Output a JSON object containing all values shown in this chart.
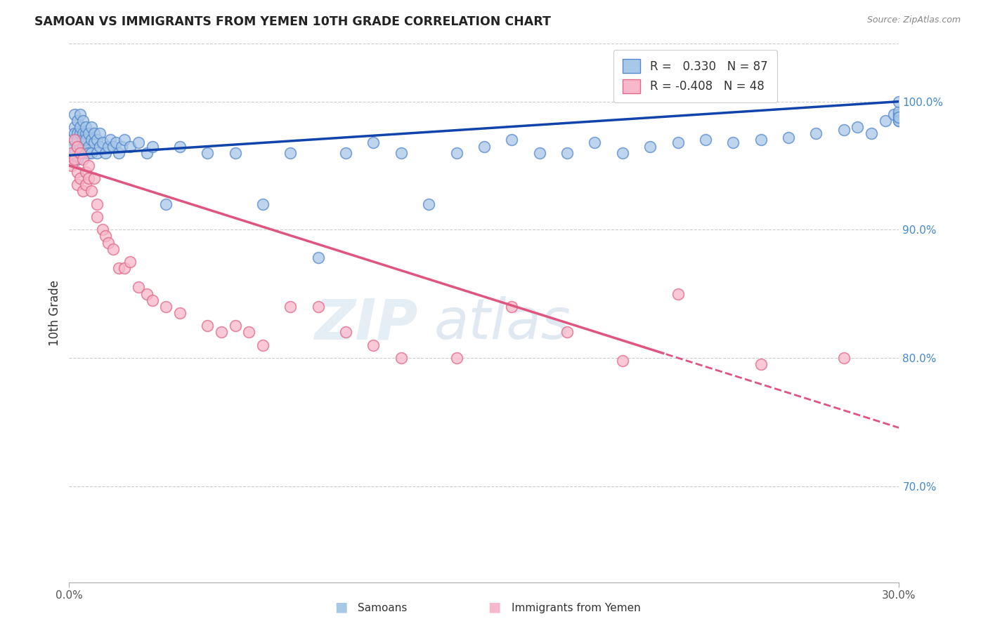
{
  "title": "SAMOAN VS IMMIGRANTS FROM YEMEN 10TH GRADE CORRELATION CHART",
  "source": "Source: ZipAtlas.com",
  "ylabel": "10th Grade",
  "xmin": 0.0,
  "xmax": 0.3,
  "ymin": 0.625,
  "ymax": 1.045,
  "yticks": [
    0.7,
    0.8,
    0.9,
    1.0
  ],
  "ytick_labels": [
    "70.0%",
    "80.0%",
    "90.0%",
    "100.0%"
  ],
  "blue_r": "0.330",
  "blue_n": 87,
  "pink_r": "-0.408",
  "pink_n": 48,
  "blue_color": "#a8c8e8",
  "blue_edge_color": "#5588cc",
  "pink_color": "#f8b8cc",
  "pink_edge_color": "#e06888",
  "blue_line_color": "#1144aa",
  "pink_line_color": "#e05580",
  "legend_label_blue": "Samoans",
  "legend_label_pink": "Immigrants from Yemen",
  "blue_scatter_x": [
    0.001,
    0.001,
    0.001,
    0.002,
    0.002,
    0.002,
    0.002,
    0.003,
    0.003,
    0.003,
    0.003,
    0.003,
    0.004,
    0.004,
    0.004,
    0.004,
    0.005,
    0.005,
    0.005,
    0.005,
    0.005,
    0.006,
    0.006,
    0.006,
    0.006,
    0.007,
    0.007,
    0.007,
    0.008,
    0.008,
    0.008,
    0.009,
    0.009,
    0.01,
    0.01,
    0.011,
    0.011,
    0.012,
    0.013,
    0.014,
    0.015,
    0.016,
    0.017,
    0.018,
    0.019,
    0.02,
    0.022,
    0.025,
    0.028,
    0.03,
    0.035,
    0.04,
    0.05,
    0.06,
    0.07,
    0.08,
    0.09,
    0.1,
    0.11,
    0.12,
    0.13,
    0.14,
    0.15,
    0.16,
    0.17,
    0.18,
    0.19,
    0.2,
    0.21,
    0.22,
    0.23,
    0.24,
    0.25,
    0.26,
    0.27,
    0.28,
    0.285,
    0.29,
    0.295,
    0.298,
    0.3,
    0.3,
    0.3,
    0.3,
    0.3,
    0.3,
    0.3
  ],
  "blue_scatter_y": [
    0.97,
    0.955,
    0.965,
    0.98,
    0.96,
    0.975,
    0.99,
    0.965,
    0.975,
    0.985,
    0.955,
    0.97,
    0.975,
    0.965,
    0.98,
    0.99,
    0.965,
    0.975,
    0.96,
    0.985,
    0.97,
    0.975,
    0.96,
    0.97,
    0.98,
    0.965,
    0.975,
    0.96,
    0.97,
    0.98,
    0.96,
    0.968,
    0.975,
    0.96,
    0.97,
    0.965,
    0.975,
    0.968,
    0.96,
    0.965,
    0.97,
    0.965,
    0.968,
    0.96,
    0.965,
    0.97,
    0.965,
    0.968,
    0.96,
    0.965,
    0.92,
    0.965,
    0.96,
    0.96,
    0.92,
    0.96,
    0.878,
    0.96,
    0.968,
    0.96,
    0.92,
    0.96,
    0.965,
    0.97,
    0.96,
    0.96,
    0.968,
    0.96,
    0.965,
    0.968,
    0.97,
    0.968,
    0.97,
    0.972,
    0.975,
    0.978,
    0.98,
    0.975,
    0.985,
    0.99,
    0.985,
    0.988,
    0.99,
    0.992,
    0.985,
    0.988,
    1.0
  ],
  "pink_scatter_x": [
    0.001,
    0.001,
    0.002,
    0.002,
    0.003,
    0.003,
    0.003,
    0.004,
    0.004,
    0.005,
    0.005,
    0.006,
    0.006,
    0.007,
    0.007,
    0.008,
    0.009,
    0.01,
    0.01,
    0.012,
    0.013,
    0.014,
    0.016,
    0.018,
    0.02,
    0.022,
    0.025,
    0.028,
    0.03,
    0.035,
    0.04,
    0.05,
    0.055,
    0.06,
    0.065,
    0.07,
    0.08,
    0.09,
    0.1,
    0.11,
    0.12,
    0.14,
    0.16,
    0.18,
    0.2,
    0.22,
    0.25,
    0.28
  ],
  "pink_scatter_y": [
    0.96,
    0.95,
    0.97,
    0.955,
    0.965,
    0.945,
    0.935,
    0.96,
    0.94,
    0.955,
    0.93,
    0.945,
    0.935,
    0.94,
    0.95,
    0.93,
    0.94,
    0.92,
    0.91,
    0.9,
    0.895,
    0.89,
    0.885,
    0.87,
    0.87,
    0.875,
    0.855,
    0.85,
    0.845,
    0.84,
    0.835,
    0.825,
    0.82,
    0.825,
    0.82,
    0.81,
    0.84,
    0.84,
    0.82,
    0.81,
    0.8,
    0.8,
    0.84,
    0.82,
    0.798,
    0.85,
    0.795,
    0.8
  ]
}
